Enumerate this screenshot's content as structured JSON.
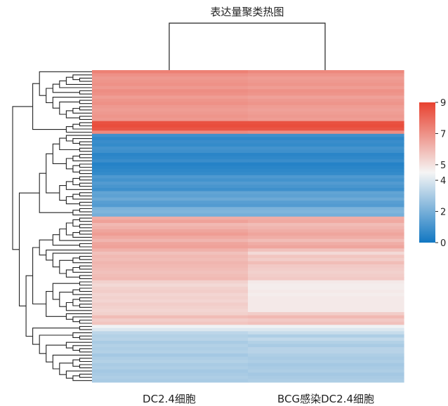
{
  "chart_data": {
    "type": "heatmap",
    "title": "表达量聚类热图",
    "columns": [
      "DC2.4细胞",
      "BCG感染DC2.4细胞"
    ],
    "colorbar": {
      "min": 0,
      "max": 9,
      "ticks": [
        0,
        2,
        4,
        5,
        7,
        9
      ]
    },
    "colors": {
      "low": "#1177c2",
      "mid": "#f5f5f5",
      "high": "#e8412f"
    },
    "values": [
      [
        7.4,
        7.2
      ],
      [
        7.0,
        6.9
      ],
      [
        6.8,
        6.7
      ],
      [
        6.9,
        6.8
      ],
      [
        7.0,
        6.9
      ],
      [
        6.8,
        6.7
      ],
      [
        7.1,
        7.0
      ],
      [
        7.0,
        6.9
      ],
      [
        6.7,
        6.6
      ],
      [
        6.9,
        6.8
      ],
      [
        7.0,
        6.9
      ],
      [
        6.8,
        6.7
      ],
      [
        6.7,
        6.6
      ],
      [
        6.8,
        6.7
      ],
      [
        6.9,
        6.8
      ],
      [
        6.8,
        6.7
      ],
      [
        8.6,
        8.6
      ],
      [
        8.7,
        8.7
      ],
      [
        8.5,
        8.5
      ],
      [
        7.2,
        7.1
      ],
      [
        0.9,
        0.9
      ],
      [
        0.6,
        0.6
      ],
      [
        0.8,
        0.8
      ],
      [
        0.7,
        0.7
      ],
      [
        1.0,
        1.0
      ],
      [
        0.9,
        0.9
      ],
      [
        0.5,
        0.5
      ],
      [
        0.6,
        0.6
      ],
      [
        0.8,
        0.8
      ],
      [
        0.4,
        0.4
      ],
      [
        0.5,
        0.5
      ],
      [
        0.6,
        0.6
      ],
      [
        0.7,
        0.7
      ],
      [
        1.2,
        1.2
      ],
      [
        1.0,
        1.0
      ],
      [
        1.3,
        1.3
      ],
      [
        1.1,
        1.1
      ],
      [
        0.9,
        0.9
      ],
      [
        1.6,
        1.6
      ],
      [
        1.5,
        1.5
      ],
      [
        1.8,
        1.8
      ],
      [
        1.4,
        1.4
      ],
      [
        1.3,
        1.3
      ],
      [
        2.1,
        2.1
      ],
      [
        2.2,
        2.2
      ],
      [
        2.0,
        2.0
      ],
      [
        6.3,
        6.3
      ],
      [
        6.6,
        6.4
      ],
      [
        6.0,
        5.9
      ],
      [
        6.2,
        6.1
      ],
      [
        6.5,
        6.3
      ],
      [
        6.7,
        6.5
      ],
      [
        6.4,
        6.3
      ],
      [
        6.1,
        5.9
      ],
      [
        6.5,
        6.3
      ],
      [
        6.6,
        6.5
      ],
      [
        6.2,
        5.8
      ],
      [
        5.8,
        5.2
      ],
      [
        6.0,
        5.7
      ],
      [
        5.9,
        5.5
      ],
      [
        6.1,
        5.9
      ],
      [
        6.0,
        5.6
      ],
      [
        5.9,
        5.5
      ],
      [
        5.8,
        5.4
      ],
      [
        5.9,
        5.5
      ],
      [
        6.0,
        5.6
      ],
      [
        5.4,
        4.8
      ],
      [
        5.2,
        4.7
      ],
      [
        5.4,
        4.7
      ],
      [
        5.5,
        4.8
      ],
      [
        5.3,
        4.7
      ],
      [
        5.4,
        4.8
      ],
      [
        5.3,
        4.8
      ],
      [
        5.5,
        4.8
      ],
      [
        5.4,
        4.8
      ],
      [
        5.3,
        4.8
      ],
      [
        5.4,
        5.5
      ],
      [
        5.9,
        6.0
      ],
      [
        5.5,
        5.6
      ],
      [
        5.7,
        5.8
      ],
      [
        4.4,
        4.4
      ],
      [
        4.0,
        4.0
      ],
      [
        3.4,
        3.6
      ],
      [
        3.2,
        3.1
      ],
      [
        3.3,
        3.5
      ],
      [
        3.0,
        3.2
      ],
      [
        3.2,
        3.0
      ],
      [
        3.1,
        3.3
      ],
      [
        3.2,
        3.3
      ],
      [
        2.9,
        3.1
      ],
      [
        3.1,
        3.0
      ],
      [
        3.2,
        3.1
      ],
      [
        3.0,
        2.9
      ],
      [
        3.1,
        3.0
      ],
      [
        2.9,
        3.1
      ],
      [
        3.0,
        2.9
      ],
      [
        3.1,
        3.0
      ],
      [
        3.0,
        3.1
      ]
    ]
  }
}
